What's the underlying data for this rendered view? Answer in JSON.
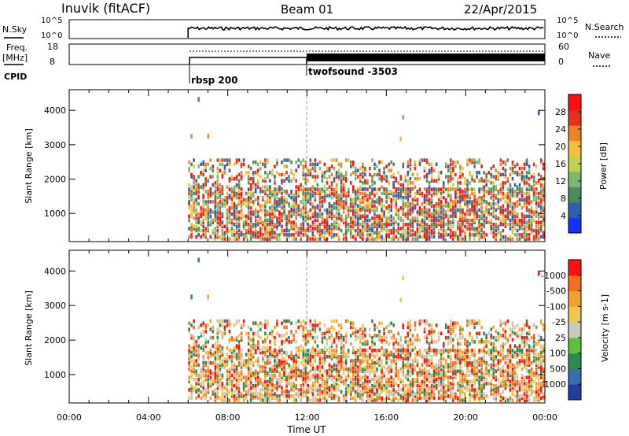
{
  "header": {
    "station": "Inuvik (fitACF)",
    "beam": "Beam 01",
    "date": "22/Apr/2015"
  },
  "labels": {
    "nsky": "N.Sky",
    "nsearch": "N.Search",
    "freq_top": "Freq.",
    "freq_bottom": "[MHz]",
    "nave": "Nave",
    "cpid": "CPID",
    "nsky_tick_hi": "10^5",
    "nsky_tick_lo": "10^0",
    "nsearch_tick_hi": "10^5",
    "nsearch_tick_lo": "10^0",
    "freq_tick_hi": "18",
    "freq_tick_lo": "8",
    "nave_tick_hi": "60",
    "nave_tick_lo": "0"
  },
  "cpid_segments": [
    {
      "label": "rbsp 200",
      "start_hour": 6
    },
    {
      "label": "twofsound -3503",
      "start_hour": 12
    }
  ],
  "chart_data": [
    {
      "type": "heatmap",
      "title": "Power",
      "ylabel": "Slant Range [km]",
      "ylim": [
        180,
        4600
      ],
      "yticks": [
        1000,
        2000,
        3000,
        4000
      ],
      "xticks": [
        "00:00",
        "04:00",
        "08:00",
        "12:00",
        "16:00",
        "20:00",
        "00:00"
      ],
      "colorbar": {
        "label": "Power [dB]",
        "ticks": [
          "4",
          "8",
          "12",
          "16",
          "20",
          "24",
          "28"
        ],
        "colors": [
          "#1530ff",
          "#2b5fb0",
          "#4a8c5a",
          "#7fb86a",
          "#c0d050",
          "#f0c040",
          "#f08028",
          "#e83020",
          "#ff1010"
        ]
      },
      "data_extent_hours": [
        6,
        24
      ]
    },
    {
      "type": "heatmap",
      "title": "Velocity",
      "ylabel": "Slant Range [km]",
      "xlabel": "Time UT",
      "ylim": [
        180,
        4600
      ],
      "yticks": [
        1000,
        2000,
        3000,
        4000
      ],
      "xticks": [
        "00:00",
        "04:00",
        "08:00",
        "12:00",
        "16:00",
        "20:00",
        "00:00"
      ],
      "colorbar": {
        "label": "Velocity [m s-1]",
        "ticks": [
          "1000",
          "500",
          "100",
          "25",
          "-25",
          "-100",
          "-500",
          "-1000"
        ],
        "colors": [
          "#2040a0",
          "#3a6cb0",
          "#2f8a50",
          "#5fc040",
          "#c8c8c0",
          "#f0c850",
          "#f0a030",
          "#f07020",
          "#ff1010"
        ]
      },
      "data_extent_hours": [
        6,
        24
      ]
    }
  ]
}
